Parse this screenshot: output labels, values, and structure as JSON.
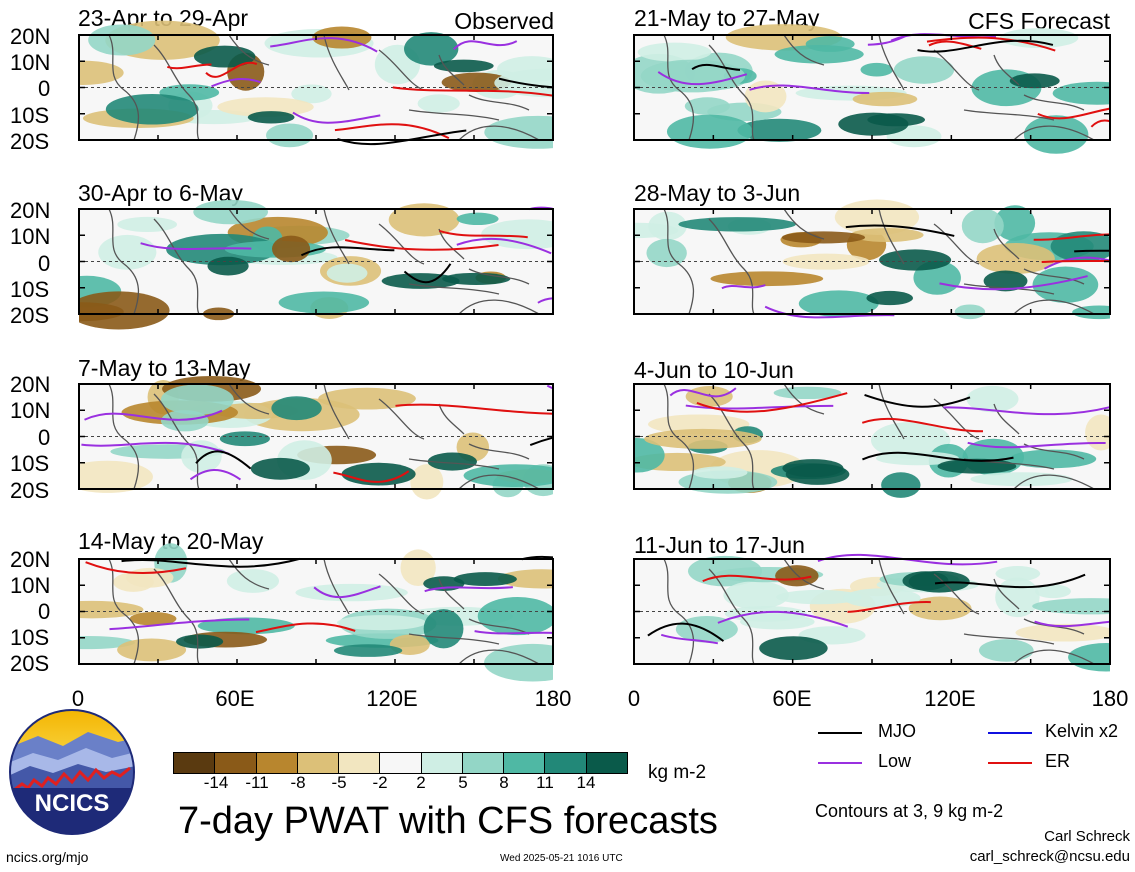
{
  "panels": [
    {
      "id": "p1",
      "date": "23-Apr to 29-Apr",
      "label": "Observed"
    },
    {
      "id": "p2",
      "date": "21-May to 27-May",
      "label": "CFS Forecast"
    },
    {
      "id": "p3",
      "date": "30-Apr to 6-May",
      "label": ""
    },
    {
      "id": "p4",
      "date": "28-May to 3-Jun",
      "label": ""
    },
    {
      "id": "p5",
      "date": "7-May to 13-May",
      "label": ""
    },
    {
      "id": "p6",
      "date": "4-Jun to 10-Jun",
      "label": ""
    },
    {
      "id": "p7",
      "date": "14-May to 20-May",
      "label": ""
    },
    {
      "id": "p8",
      "date": "11-Jun to 17-Jun",
      "label": ""
    }
  ],
  "lat_ticks": [
    "20N",
    "10N",
    "0",
    "10S",
    "20S"
  ],
  "lon_ticks": [
    "0",
    "60E",
    "120E",
    "180"
  ],
  "legend": {
    "mjo": "MJO",
    "kelvin": "Kelvin x2",
    "low": "Low",
    "er": "ER",
    "colors": {
      "mjo": "#000000",
      "kelvin": "#1010e0",
      "low": "#9a30e0",
      "er": "#e01010"
    }
  },
  "colorbar": {
    "ticks": [
      "-14",
      "-11",
      "-8",
      "-5",
      "-2",
      "2",
      "5",
      "8",
      "11",
      "14"
    ],
    "units": "kg m-2",
    "colors": [
      "#5a3a10",
      "#8a5a18",
      "#b8862e",
      "#dcc078",
      "#f2e6c0",
      "#f7f7f7",
      "#cfeee4",
      "#93d6c6",
      "#4fb8a4",
      "#228878",
      "#0a5a4a"
    ]
  },
  "title": "7-day PWAT with CFS forecasts",
  "contours_note": "Contours at 3, 9 kg m-2",
  "author": "Carl Schreck",
  "email": "carl_schreck@ncsu.edu",
  "site": "ncics.org/mjo",
  "timestamp": "Wed 2025-05-21 1016 UTC",
  "logo_text": "NCICS"
}
